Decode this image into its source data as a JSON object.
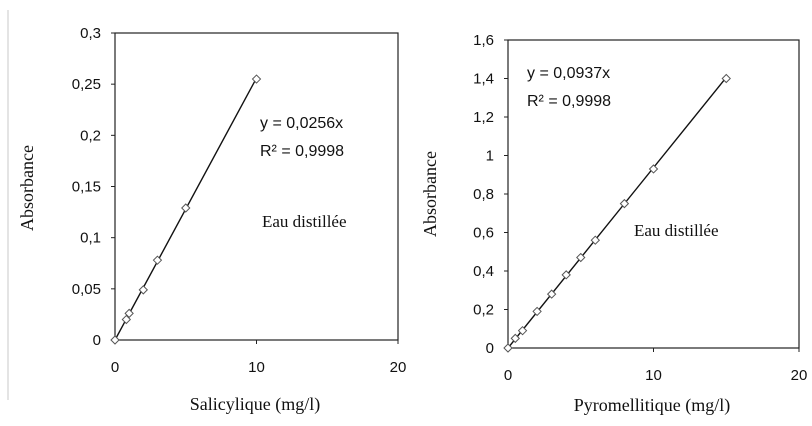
{
  "chart_data": [
    {
      "type": "scatter",
      "xlabel": "Salicylique (mg/l)",
      "ylabel": "Absorbance",
      "xlim": [
        0,
        20
      ],
      "ylim": [
        0,
        0.3
      ],
      "x_ticks": [
        0,
        10,
        20
      ],
      "x_tick_labels": [
        "0",
        "10",
        "20"
      ],
      "y_ticks": [
        0,
        0.05,
        0.1,
        0.15,
        0.2,
        0.25,
        0.3
      ],
      "y_tick_labels": [
        "0",
        "0,05",
        "0,1",
        "0,15",
        "0,2",
        "0,25",
        "0,3"
      ],
      "grid": false,
      "points": [
        {
          "x": 0,
          "y": 0
        },
        {
          "x": 0.8,
          "y": 0.02
        },
        {
          "x": 1,
          "y": 0.026
        },
        {
          "x": 2,
          "y": 0.049
        },
        {
          "x": 3,
          "y": 0.078
        },
        {
          "x": 5,
          "y": 0.129
        },
        {
          "x": 10,
          "y": 0.255
        }
      ],
      "trendline": {
        "slope": 0.0256,
        "x_range": [
          0,
          10
        ]
      },
      "equation": "y = 0,0256x",
      "r2": "R² = 0,9998",
      "annotation": "Eau distillée"
    },
    {
      "type": "scatter",
      "xlabel": "Pyromellitique (mg/l)",
      "ylabel": "Absorbance",
      "xlim": [
        0,
        20
      ],
      "ylim": [
        0,
        1.6
      ],
      "x_ticks": [
        0,
        10,
        20
      ],
      "x_tick_labels": [
        "0",
        "10",
        "20"
      ],
      "y_ticks": [
        0,
        0.2,
        0.4,
        0.6,
        0.8,
        1,
        1.2,
        1.4,
        1.6
      ],
      "y_tick_labels": [
        "0",
        "0,2",
        "0,4",
        "0,6",
        "0,8",
        "1",
        "1,2",
        "1,4",
        "1,6"
      ],
      "grid": false,
      "points": [
        {
          "x": 0,
          "y": 0
        },
        {
          "x": 0.5,
          "y": 0.05
        },
        {
          "x": 1,
          "y": 0.09
        },
        {
          "x": 2,
          "y": 0.19
        },
        {
          "x": 3,
          "y": 0.28
        },
        {
          "x": 4,
          "y": 0.38
        },
        {
          "x": 5,
          "y": 0.47
        },
        {
          "x": 6,
          "y": 0.56
        },
        {
          "x": 8,
          "y": 0.75
        },
        {
          "x": 10,
          "y": 0.93
        },
        {
          "x": 15,
          "y": 1.4
        }
      ],
      "trendline": {
        "slope": 0.0937,
        "x_range": [
          0,
          15
        ]
      },
      "equation": "y = 0,0937x",
      "r2": "R² = 0,9998",
      "annotation": "Eau distillée"
    }
  ]
}
